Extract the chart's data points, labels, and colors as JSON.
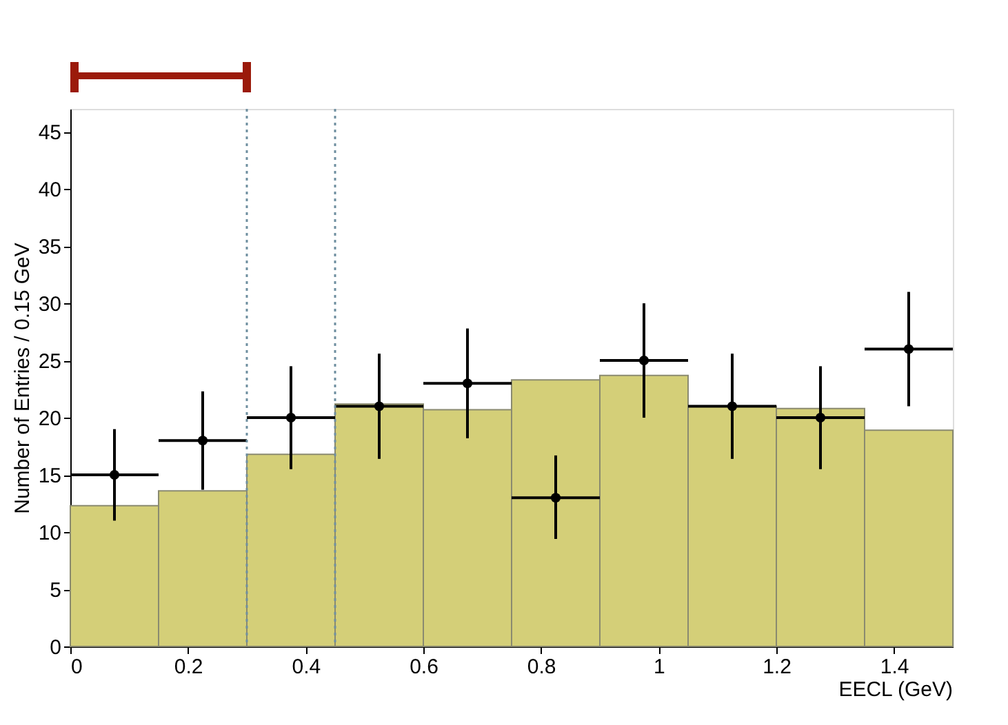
{
  "chart_data": {
    "type": "histogram",
    "xlabel": "EECL (GeV)",
    "ylabel": "Number of Entries / 0.15 GeV",
    "xlim": [
      0,
      1.5
    ],
    "xticks": [
      0,
      0.2,
      0.4,
      0.6,
      0.8,
      1,
      1.2,
      1.4
    ],
    "ylim": [
      0,
      47
    ],
    "yticks": [
      0,
      5,
      10,
      15,
      20,
      25,
      30,
      35,
      40,
      45
    ],
    "grid": false,
    "series": [
      {
        "color": "#d4cf78",
        "bins": [
          0,
          0.15,
          0.3,
          0.45,
          0.6,
          0.75,
          0.9,
          1.05,
          1.2,
          1.35,
          1.5
        ],
        "values": [
          12.3,
          13.6,
          16.8,
          21.2,
          20.7,
          23.3,
          23.7,
          21.0,
          20.8,
          18.9
        ]
      },
      {
        "type": "scatter",
        "color": "#000000",
        "marker": "circle",
        "x": [
          0.075,
          0.225,
          0.375,
          0.525,
          0.675,
          0.825,
          0.975,
          1.125,
          1.275,
          1.425
        ],
        "values": [
          15,
          18,
          20,
          21,
          23,
          13,
          25,
          21,
          20,
          26
        ],
        "errors": [
          [
            11,
            19
          ],
          [
            13.7,
            22.3
          ],
          [
            15.5,
            24.5
          ],
          [
            16.4,
            25.6
          ],
          [
            18.2,
            27.8
          ],
          [
            9.4,
            16.7
          ],
          [
            20,
            30
          ],
          [
            16.4,
            25.6
          ],
          [
            15.5,
            24.5
          ],
          [
            21,
            31
          ]
        ],
        "xerrors": [
          0.075,
          0.075,
          0.075,
          0.075,
          0.075,
          0.075,
          0.075,
          0.075,
          0.075,
          0.075
        ]
      }
    ],
    "ref_lines": [
      {
        "axis": "x",
        "value": 0.3,
        "color": "#6f8fa0",
        "line_style": "dotted"
      },
      {
        "axis": "x",
        "value": 0.45,
        "color": "#6f8fa0",
        "line_style": "dotted"
      }
    ]
  }
}
